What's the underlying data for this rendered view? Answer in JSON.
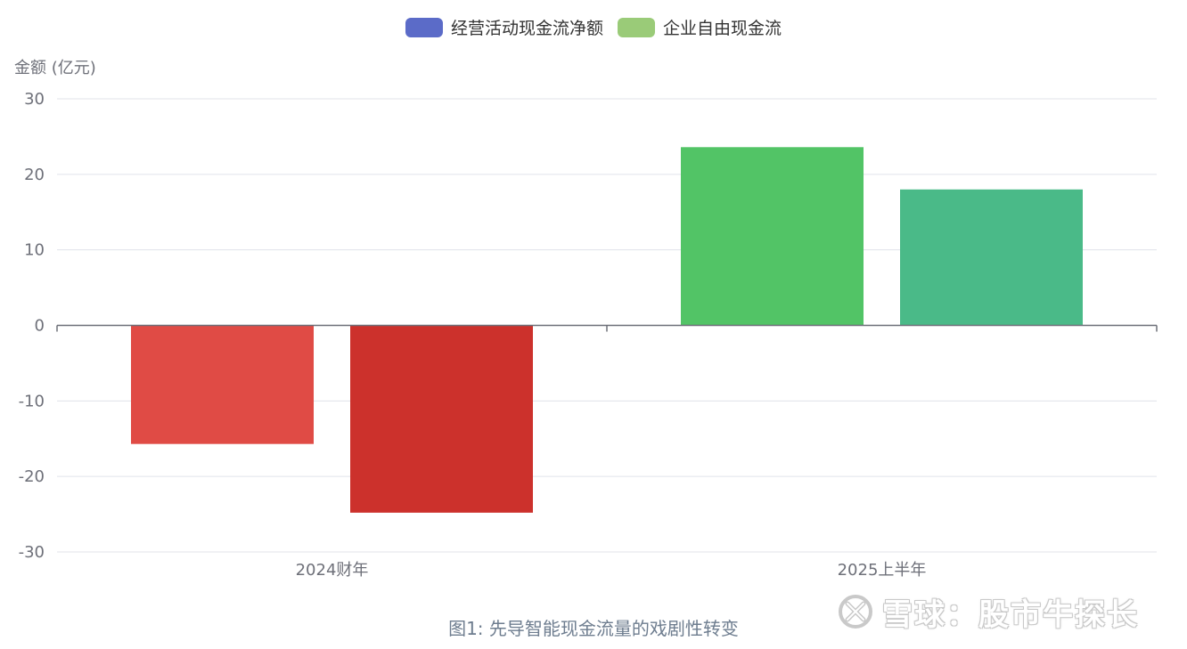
{
  "chart_data": {
    "type": "bar",
    "title": "",
    "ylabel": "金额 (亿元)",
    "categories": [
      "2024财年",
      "2025上半年"
    ],
    "ylim": [
      -30,
      30
    ],
    "yticks": [
      30,
      20,
      10,
      0,
      -10,
      -20,
      -30
    ],
    "grid": true,
    "legend_position": "top-center",
    "series": [
      {
        "name": "经营活动现金流净额",
        "legend_color": "#5b6bc8",
        "values": [
          -15.7,
          23.6
        ],
        "bar_colors": [
          "#e04b45",
          "#52c466"
        ]
      },
      {
        "name": "企业自由现金流",
        "legend_color": "#9acb78",
        "values": [
          -24.8,
          18.0
        ],
        "bar_colors": [
          "#cc312c",
          "#4aba88"
        ]
      }
    ]
  },
  "caption": "图1: 先导智能现金流量的戏剧性转变",
  "watermark": {
    "text": "雪球：股市牛探长",
    "icon": "snowball-logo-icon"
  }
}
